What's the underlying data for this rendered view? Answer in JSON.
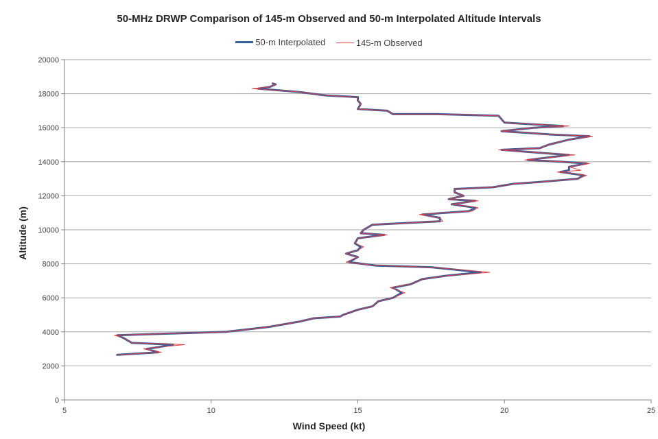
{
  "chart_data": {
    "type": "line",
    "title": "50-MHz DRWP Comparison of 145-m Observed and 50-m Interpolated Altitude Intervals",
    "xlabel": "Wind Speed (kt)",
    "ylabel": "Altitude (m)",
    "xlim": [
      5,
      25
    ],
    "ylim": [
      0,
      20000
    ],
    "x_ticks": [
      "5",
      "10",
      "15",
      "20",
      "25"
    ],
    "y_ticks": [
      "0",
      "2000",
      "4000",
      "6000",
      "8000",
      "10000",
      "12000",
      "14000",
      "16000",
      "18000",
      "20000"
    ],
    "grid": "horizontal",
    "legend_position": "top",
    "series": [
      {
        "name": "50-m Interpolated",
        "color": "#365f9c",
        "points": [
          [
            6.8,
            2650
          ],
          [
            8.2,
            2800
          ],
          [
            7.8,
            3000
          ],
          [
            8.2,
            3100
          ],
          [
            8.7,
            3250
          ],
          [
            7.3,
            3350
          ],
          [
            7.0,
            3650
          ],
          [
            6.8,
            3800
          ],
          [
            8.6,
            3900
          ],
          [
            10.5,
            4000
          ],
          [
            12.0,
            4300
          ],
          [
            13.0,
            4600
          ],
          [
            13.5,
            4800
          ],
          [
            14.4,
            4900
          ],
          [
            14.5,
            5000
          ],
          [
            15.0,
            5300
          ],
          [
            15.5,
            5500
          ],
          [
            15.7,
            5800
          ],
          [
            16.2,
            6000
          ],
          [
            16.5,
            6300
          ],
          [
            16.2,
            6600
          ],
          [
            16.8,
            6800
          ],
          [
            17.2,
            7100
          ],
          [
            18.0,
            7300
          ],
          [
            19.2,
            7500
          ],
          [
            17.5,
            7800
          ],
          [
            15.6,
            7900
          ],
          [
            14.7,
            8100
          ],
          [
            15.0,
            8400
          ],
          [
            14.6,
            8600
          ],
          [
            15.0,
            8800
          ],
          [
            15.1,
            9000
          ],
          [
            14.9,
            9200
          ],
          [
            15.0,
            9500
          ],
          [
            15.9,
            9700
          ],
          [
            15.1,
            9800
          ],
          [
            15.2,
            10000
          ],
          [
            15.5,
            10300
          ],
          [
            17.8,
            10500
          ],
          [
            17.8,
            10700
          ],
          [
            17.2,
            10900
          ],
          [
            18.8,
            11100
          ],
          [
            19.0,
            11300
          ],
          [
            18.2,
            11500
          ],
          [
            19.0,
            11700
          ],
          [
            18.1,
            11800
          ],
          [
            18.6,
            12000
          ],
          [
            18.3,
            12200
          ],
          [
            18.3,
            12400
          ],
          [
            19.6,
            12500
          ],
          [
            20.3,
            12700
          ],
          [
            21.1,
            12800
          ],
          [
            22.5,
            13000
          ],
          [
            22.7,
            13200
          ],
          [
            21.9,
            13400
          ],
          [
            22.2,
            13500
          ],
          [
            22.2,
            13700
          ],
          [
            22.8,
            13900
          ],
          [
            21.9,
            14000
          ],
          [
            20.8,
            14100
          ],
          [
            22.2,
            14400
          ],
          [
            21.4,
            14500
          ],
          [
            19.9,
            14700
          ],
          [
            21.2,
            14800
          ],
          [
            21.5,
            15000
          ],
          [
            22.2,
            15300
          ],
          [
            22.9,
            15500
          ],
          [
            21.6,
            15600
          ],
          [
            19.9,
            15800
          ],
          [
            21.0,
            16000
          ],
          [
            22.0,
            16100
          ],
          [
            20.0,
            16300
          ],
          [
            19.8,
            16700
          ],
          [
            17.7,
            16800
          ],
          [
            16.2,
            16800
          ],
          [
            16.0,
            17000
          ],
          [
            15.0,
            17100
          ],
          [
            15.1,
            17400
          ],
          [
            15.0,
            17600
          ],
          [
            15.0,
            17800
          ],
          [
            13.9,
            17900
          ],
          [
            13.0,
            18100
          ],
          [
            11.6,
            18300
          ],
          [
            12.0,
            18400
          ],
          [
            12.2,
            18550
          ],
          [
            12.1,
            18600
          ]
        ]
      },
      {
        "name": "145-m Observed",
        "color": "#e03c41",
        "points": [
          [
            6.8,
            2650
          ],
          [
            8.3,
            2800
          ],
          [
            7.7,
            3000
          ],
          [
            8.2,
            3100
          ],
          [
            9.1,
            3250
          ],
          [
            7.3,
            3350
          ],
          [
            7.0,
            3650
          ],
          [
            6.7,
            3800
          ],
          [
            8.6,
            3900
          ],
          [
            10.5,
            4000
          ],
          [
            12.0,
            4300
          ],
          [
            13.0,
            4600
          ],
          [
            13.5,
            4800
          ],
          [
            14.4,
            4900
          ],
          [
            14.5,
            5000
          ],
          [
            15.0,
            5300
          ],
          [
            15.5,
            5500
          ],
          [
            15.7,
            5800
          ],
          [
            16.2,
            6000
          ],
          [
            16.6,
            6300
          ],
          [
            16.1,
            6600
          ],
          [
            16.8,
            6800
          ],
          [
            17.2,
            7100
          ],
          [
            18.0,
            7300
          ],
          [
            19.5,
            7500
          ],
          [
            17.5,
            7800
          ],
          [
            15.6,
            7900
          ],
          [
            14.6,
            8100
          ],
          [
            15.0,
            8400
          ],
          [
            14.6,
            8600
          ],
          [
            15.0,
            8800
          ],
          [
            15.2,
            9000
          ],
          [
            14.9,
            9200
          ],
          [
            15.0,
            9500
          ],
          [
            16.0,
            9700
          ],
          [
            15.1,
            9800
          ],
          [
            15.2,
            10000
          ],
          [
            15.5,
            10300
          ],
          [
            17.9,
            10500
          ],
          [
            17.8,
            10700
          ],
          [
            17.1,
            10900
          ],
          [
            18.9,
            11100
          ],
          [
            19.1,
            11300
          ],
          [
            18.2,
            11500
          ],
          [
            19.1,
            11700
          ],
          [
            18.1,
            11800
          ],
          [
            18.6,
            12000
          ],
          [
            18.3,
            12200
          ],
          [
            18.3,
            12400
          ],
          [
            19.6,
            12500
          ],
          [
            20.3,
            12700
          ],
          [
            21.1,
            12800
          ],
          [
            22.5,
            13000
          ],
          [
            22.8,
            13200
          ],
          [
            21.8,
            13400
          ],
          [
            22.6,
            13500
          ],
          [
            22.2,
            13700
          ],
          [
            22.9,
            13900
          ],
          [
            21.9,
            14000
          ],
          [
            20.7,
            14100
          ],
          [
            22.4,
            14400
          ],
          [
            21.4,
            14500
          ],
          [
            19.8,
            14700
          ],
          [
            21.2,
            14800
          ],
          [
            21.5,
            15000
          ],
          [
            22.2,
            15300
          ],
          [
            23.0,
            15500
          ],
          [
            21.6,
            15600
          ],
          [
            19.9,
            15800
          ],
          [
            21.0,
            16000
          ],
          [
            22.2,
            16100
          ],
          [
            20.0,
            16300
          ],
          [
            19.8,
            16700
          ],
          [
            17.7,
            16800
          ],
          [
            16.2,
            16800
          ],
          [
            16.0,
            17000
          ],
          [
            15.0,
            17100
          ],
          [
            15.1,
            17400
          ],
          [
            15.0,
            17600
          ],
          [
            15.0,
            17800
          ],
          [
            13.9,
            17900
          ],
          [
            13.0,
            18100
          ],
          [
            11.4,
            18300
          ],
          [
            12.0,
            18400
          ],
          [
            12.2,
            18550
          ],
          [
            12.1,
            18600
          ]
        ]
      }
    ]
  }
}
